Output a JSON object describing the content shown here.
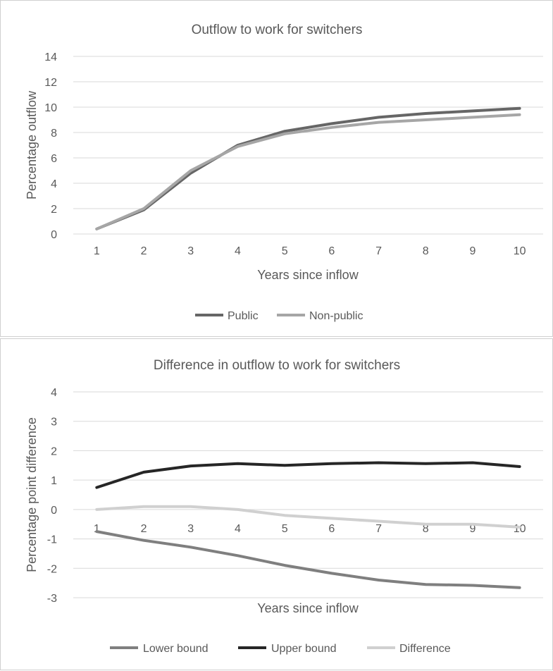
{
  "chart_data": [
    {
      "type": "line",
      "title": "Outflow to work for switchers",
      "xlabel": "Years since inflow",
      "ylabel": "Percentage outflow",
      "x": [
        1,
        2,
        3,
        4,
        5,
        6,
        7,
        8,
        9,
        10
      ],
      "ylim": [
        0,
        14
      ],
      "yticks": [
        0,
        2,
        4,
        6,
        8,
        10,
        12,
        14
      ],
      "grid": true,
      "legend": "bottom",
      "series": [
        {
          "name": "Public",
          "color": "#666666",
          "values": [
            0.4,
            1.9,
            4.8,
            7.0,
            8.1,
            8.7,
            9.2,
            9.5,
            9.7,
            9.9
          ]
        },
        {
          "name": "Non-public",
          "color": "#a6a6a6",
          "values": [
            0.4,
            2.0,
            5.0,
            6.9,
            7.9,
            8.4,
            8.8,
            9.0,
            9.2,
            9.4
          ]
        }
      ]
    },
    {
      "type": "line",
      "title": "Difference in outflow to work for switchers",
      "xlabel": "Years since inflow",
      "ylabel": "Percentage point difference",
      "x": [
        1,
        2,
        3,
        4,
        5,
        6,
        7,
        8,
        9,
        10
      ],
      "ylim": [
        -3,
        4
      ],
      "yticks": [
        -3,
        -2,
        -1,
        0,
        1,
        2,
        3,
        4
      ],
      "grid": true,
      "legend": "bottom",
      "series": [
        {
          "name": "Lower bound",
          "color": "#7f7f7f",
          "values": [
            -0.75,
            -1.05,
            -1.28,
            -1.57,
            -1.9,
            -2.17,
            -2.4,
            -2.55,
            -2.58,
            -2.66
          ]
        },
        {
          "name": "Upper bound",
          "color": "#262626",
          "values": [
            0.75,
            1.27,
            1.48,
            1.56,
            1.5,
            1.56,
            1.59,
            1.56,
            1.59,
            1.46
          ]
        },
        {
          "name": "Difference",
          "color": "#d0d0d0",
          "values": [
            0.0,
            0.1,
            0.1,
            0.0,
            -0.2,
            -0.3,
            -0.4,
            -0.5,
            -0.5,
            -0.6
          ]
        }
      ]
    }
  ]
}
